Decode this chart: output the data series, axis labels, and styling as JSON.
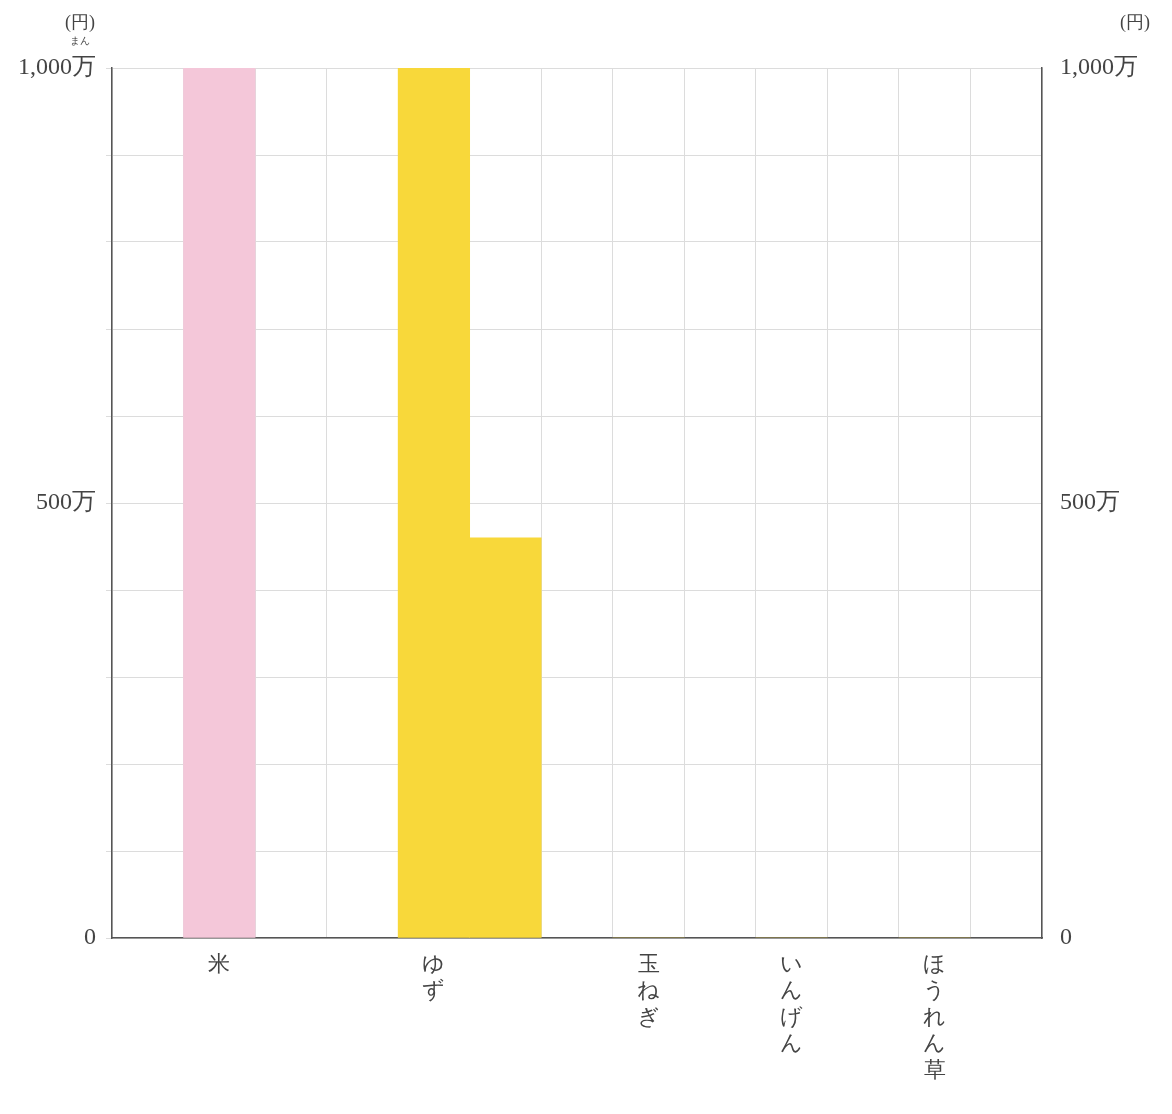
{
  "chart_data": {
    "type": "bar",
    "ylabel": "(円)",
    "y2label": "(円)",
    "annotations": [
      "まん"
    ],
    "categories": [
      null,
      "米",
      null,
      null,
      "ゆず",
      null,
      null,
      "玉ねぎ",
      null,
      "いんげん",
      null,
      "ほうれん草",
      null
    ],
    "colors": [
      "#f4c7d9",
      "#f4c7d9",
      "#f4c7d9",
      "#f4c7d9",
      "#f8d83a",
      "#f8d83a",
      "#f8d83a",
      "#f8d83a",
      "#f8d83a",
      "#f8d83a",
      "#f8d83a",
      "#f8d83a",
      "#f8d83a"
    ],
    "values": [
      null,
      1000,
      null,
      null,
      1000,
      460,
      null,
      0,
      null,
      0,
      null,
      0,
      null
    ],
    "ylim": [
      0,
      1000
    ],
    "yticks": [
      0,
      {
        "value": 100,
        "label": null
      },
      {
        "value": 200,
        "label": null
      },
      {
        "value": 300,
        "label": null
      },
      {
        "value": 400,
        "label": null
      },
      {
        "value": 500,
        "label": "500万"
      },
      {
        "value": 600,
        "label": null
      },
      {
        "value": 700,
        "label": null
      },
      {
        "value": 800,
        "label": null
      },
      {
        "value": 900,
        "label": null
      },
      {
        "value": 1000,
        "label": "1,000万"
      }
    ],
    "y2lim": [
      0,
      1000
    ],
    "y2ticks": [
      0,
      {
        "value": 100,
        "label": null
      },
      {
        "value": 200,
        "label": null
      },
      {
        "value": 300,
        "label": null
      },
      {
        "value": 400,
        "label": null
      },
      {
        "value": 500,
        "label": "500万"
      },
      {
        "value": 600,
        "label": null
      },
      {
        "value": 700,
        "label": null
      },
      {
        "value": 800,
        "label": null
      },
      {
        "value": 900,
        "label": null
      },
      {
        "value": 1000,
        "label": "1,000万"
      }
    ],
    "grid": true
  }
}
